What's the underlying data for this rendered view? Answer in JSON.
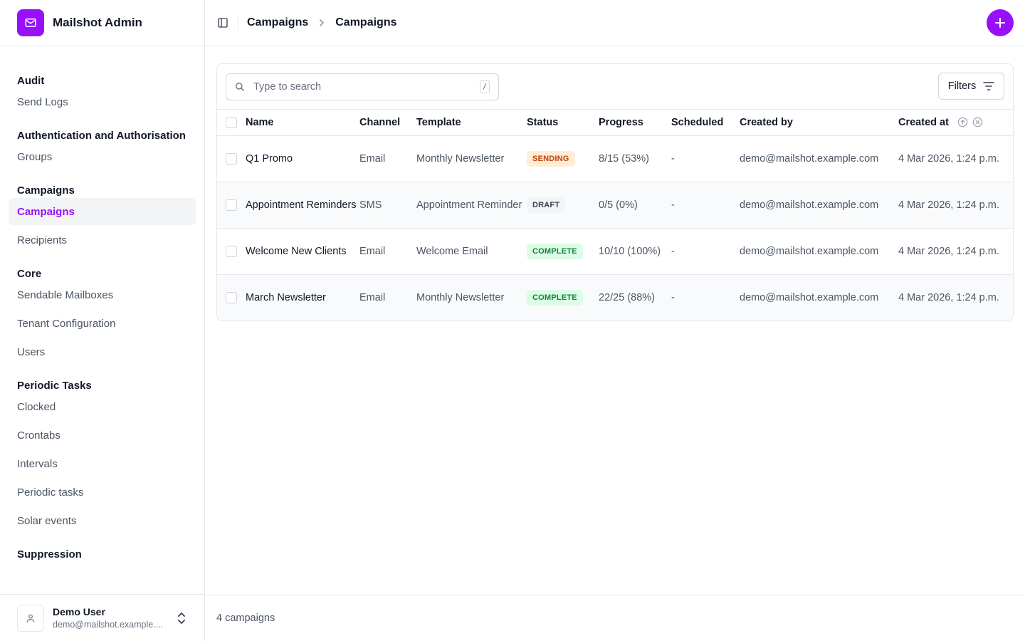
{
  "app": {
    "name": "Mailshot Admin",
    "logo_icon": "mail-icon",
    "accent": "#9810fa"
  },
  "sidebar": {
    "groups": [
      {
        "heading": "Audit",
        "items": [
          {
            "label": "Send Logs"
          }
        ]
      },
      {
        "heading": "Authentication and Authorisation",
        "items": [
          {
            "label": "Groups"
          }
        ]
      },
      {
        "heading": "Campaigns",
        "items": [
          {
            "label": "Campaigns",
            "active": true
          },
          {
            "label": "Recipients"
          }
        ]
      },
      {
        "heading": "Core",
        "items": [
          {
            "label": "Sendable Mailboxes"
          },
          {
            "label": "Tenant Configuration"
          },
          {
            "label": "Users"
          }
        ]
      },
      {
        "heading": "Periodic Tasks",
        "items": [
          {
            "label": "Clocked"
          },
          {
            "label": "Crontabs"
          },
          {
            "label": "Intervals"
          },
          {
            "label": "Periodic tasks"
          },
          {
            "label": "Solar events"
          }
        ]
      },
      {
        "heading": "Suppression",
        "items": []
      }
    ],
    "user": {
      "name": "Demo User",
      "email": "demo@mailshot.example...."
    }
  },
  "header": {
    "breadcrumb": [
      "Campaigns",
      "Campaigns"
    ]
  },
  "toolbar": {
    "search_placeholder": "Type to search",
    "search_shortcut": "/",
    "filters_label": "Filters"
  },
  "table": {
    "columns": [
      "Name",
      "Channel",
      "Template",
      "Status",
      "Progress",
      "Scheduled",
      "Created by",
      "Created at"
    ],
    "rows": [
      {
        "name": "Q1 Promo",
        "channel": "Email",
        "template": "Monthly Newsletter",
        "status": "SENDING",
        "progress": "8/15 (53%)",
        "scheduled": "-",
        "created_by": "demo@mailshot.example.com",
        "created_at": "4 Mar 2026, 1:24 p.m."
      },
      {
        "name": "Appointment Reminders",
        "channel": "SMS",
        "template": "Appointment Reminder",
        "status": "DRAFT",
        "progress": "0/5 (0%)",
        "scheduled": "-",
        "created_by": "demo@mailshot.example.com",
        "created_at": "4 Mar 2026, 1:24 p.m."
      },
      {
        "name": "Welcome New Clients",
        "channel": "Email",
        "template": "Welcome Email",
        "status": "COMPLETE",
        "progress": "10/10 (100%)",
        "scheduled": "-",
        "created_by": "demo@mailshot.example.com",
        "created_at": "4 Mar 2026, 1:24 p.m."
      },
      {
        "name": "March Newsletter",
        "channel": "Email",
        "template": "Monthly Newsletter",
        "status": "COMPLETE",
        "progress": "22/25 (88%)",
        "scheduled": "-",
        "created_by": "demo@mailshot.example.com",
        "created_at": "4 Mar 2026, 1:24 p.m."
      }
    ]
  },
  "footer": {
    "count_label": "4 campaigns"
  }
}
